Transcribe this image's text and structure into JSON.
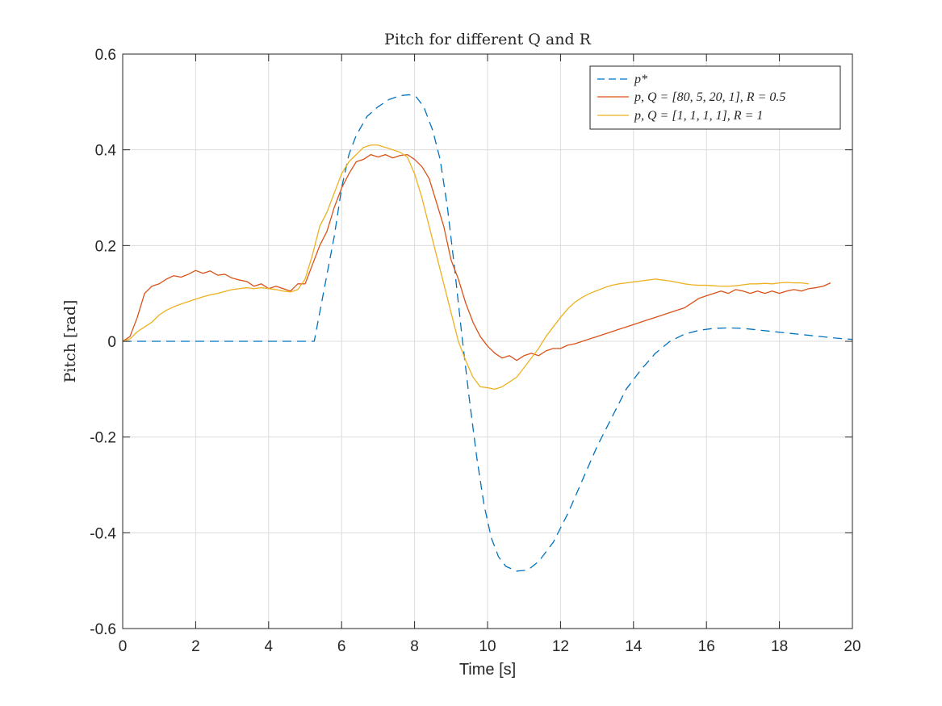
{
  "chart_data": {
    "type": "line",
    "title": "Pitch for different Q and R",
    "xlabel": "Time [s]",
    "ylabel": "Pitch [rad]",
    "xlim": [
      0,
      20
    ],
    "ylim": [
      -0.6,
      0.6
    ],
    "xticks": [
      0,
      2,
      4,
      6,
      8,
      10,
      12,
      14,
      16,
      18,
      20
    ],
    "yticks": [
      -0.6,
      -0.4,
      -0.2,
      0,
      0.2,
      0.4,
      0.6
    ],
    "xtick_labels": [
      "0",
      "2",
      "4",
      "6",
      "8",
      "10",
      "12",
      "14",
      "16",
      "18",
      "20"
    ],
    "ytick_labels": [
      "-0.6",
      "-0.4",
      "-0.2",
      "0",
      "0.2",
      "0.4",
      "0.6"
    ],
    "grid": true,
    "legend_position": "top-right",
    "series": [
      {
        "name": "p*",
        "color": "#0072BD",
        "style": "dashed",
        "points": [
          [
            0,
            0
          ],
          [
            5.25,
            0
          ],
          [
            5.5,
            0.1
          ],
          [
            5.8,
            0.22
          ],
          [
            6.0,
            0.32
          ],
          [
            6.2,
            0.39
          ],
          [
            6.4,
            0.43
          ],
          [
            6.7,
            0.47
          ],
          [
            7.0,
            0.49
          ],
          [
            7.3,
            0.505
          ],
          [
            7.6,
            0.513
          ],
          [
            7.85,
            0.515
          ],
          [
            8.05,
            0.51
          ],
          [
            8.25,
            0.49
          ],
          [
            8.5,
            0.44
          ],
          [
            8.7,
            0.38
          ],
          [
            8.9,
            0.28
          ],
          [
            9.1,
            0.15
          ],
          [
            9.3,
            0.01
          ],
          [
            9.5,
            -0.12
          ],
          [
            9.7,
            -0.24
          ],
          [
            9.9,
            -0.34
          ],
          [
            10.1,
            -0.41
          ],
          [
            10.3,
            -0.45
          ],
          [
            10.5,
            -0.47
          ],
          [
            10.8,
            -0.48
          ],
          [
            11.1,
            -0.478
          ],
          [
            11.4,
            -0.46
          ],
          [
            11.8,
            -0.42
          ],
          [
            12.2,
            -0.36
          ],
          [
            12.6,
            -0.29
          ],
          [
            13.0,
            -0.22
          ],
          [
            13.4,
            -0.16
          ],
          [
            13.8,
            -0.1
          ],
          [
            14.2,
            -0.06
          ],
          [
            14.6,
            -0.025
          ],
          [
            15.0,
            0
          ],
          [
            15.4,
            0.015
          ],
          [
            15.8,
            0.023
          ],
          [
            16.2,
            0.027
          ],
          [
            16.6,
            0.028
          ],
          [
            17.0,
            0.027
          ],
          [
            17.5,
            0.023
          ],
          [
            18.0,
            0.019
          ],
          [
            18.5,
            0.015
          ],
          [
            19.0,
            0.011
          ],
          [
            19.5,
            0.007
          ],
          [
            20.0,
            0.004
          ]
        ]
      },
      {
        "name": "p, Q = [80, 5, 20, 1], R = 0.5",
        "color": "#D95319",
        "style": "solid",
        "points": [
          [
            0,
            0
          ],
          [
            0.2,
            0.01
          ],
          [
            0.4,
            0.05
          ],
          [
            0.6,
            0.1
          ],
          [
            0.8,
            0.115
          ],
          [
            1.0,
            0.12
          ],
          [
            1.2,
            0.13
          ],
          [
            1.4,
            0.137
          ],
          [
            1.6,
            0.134
          ],
          [
            1.8,
            0.14
          ],
          [
            2.0,
            0.148
          ],
          [
            2.2,
            0.142
          ],
          [
            2.4,
            0.147
          ],
          [
            2.6,
            0.138
          ],
          [
            2.8,
            0.14
          ],
          [
            3.0,
            0.132
          ],
          [
            3.2,
            0.128
          ],
          [
            3.4,
            0.125
          ],
          [
            3.6,
            0.115
          ],
          [
            3.8,
            0.12
          ],
          [
            4.0,
            0.11
          ],
          [
            4.2,
            0.115
          ],
          [
            4.4,
            0.11
          ],
          [
            4.6,
            0.105
          ],
          [
            4.8,
            0.12
          ],
          [
            5.0,
            0.12
          ],
          [
            5.2,
            0.16
          ],
          [
            5.4,
            0.2
          ],
          [
            5.6,
            0.23
          ],
          [
            5.8,
            0.28
          ],
          [
            6.0,
            0.32
          ],
          [
            6.2,
            0.35
          ],
          [
            6.4,
            0.375
          ],
          [
            6.6,
            0.38
          ],
          [
            6.8,
            0.39
          ],
          [
            7.0,
            0.385
          ],
          [
            7.2,
            0.39
          ],
          [
            7.4,
            0.383
          ],
          [
            7.6,
            0.388
          ],
          [
            7.8,
            0.39
          ],
          [
            8.0,
            0.38
          ],
          [
            8.2,
            0.365
          ],
          [
            8.4,
            0.34
          ],
          [
            8.6,
            0.29
          ],
          [
            8.8,
            0.24
          ],
          [
            9.0,
            0.17
          ],
          [
            9.2,
            0.13
          ],
          [
            9.4,
            0.08
          ],
          [
            9.6,
            0.04
          ],
          [
            9.8,
            0.01
          ],
          [
            10.0,
            -0.01
          ],
          [
            10.2,
            -0.025
          ],
          [
            10.4,
            -0.035
          ],
          [
            10.6,
            -0.03
          ],
          [
            10.8,
            -0.04
          ],
          [
            11.0,
            -0.03
          ],
          [
            11.2,
            -0.025
          ],
          [
            11.4,
            -0.03
          ],
          [
            11.6,
            -0.02
          ],
          [
            11.8,
            -0.015
          ],
          [
            12.0,
            -0.015
          ],
          [
            12.2,
            -0.008
          ],
          [
            12.4,
            -0.005
          ],
          [
            12.6,
            0.0
          ],
          [
            12.8,
            0.005
          ],
          [
            13.0,
            0.01
          ],
          [
            13.2,
            0.015
          ],
          [
            13.4,
            0.02
          ],
          [
            13.6,
            0.025
          ],
          [
            13.8,
            0.03
          ],
          [
            14.0,
            0.035
          ],
          [
            14.2,
            0.04
          ],
          [
            14.4,
            0.045
          ],
          [
            14.6,
            0.05
          ],
          [
            14.8,
            0.055
          ],
          [
            15.0,
            0.06
          ],
          [
            15.2,
            0.065
          ],
          [
            15.4,
            0.07
          ],
          [
            15.6,
            0.08
          ],
          [
            15.8,
            0.09
          ],
          [
            16.0,
            0.095
          ],
          [
            16.2,
            0.1
          ],
          [
            16.4,
            0.105
          ],
          [
            16.6,
            0.1
          ],
          [
            16.8,
            0.108
          ],
          [
            17.0,
            0.105
          ],
          [
            17.2,
            0.1
          ],
          [
            17.4,
            0.105
          ],
          [
            17.6,
            0.1
          ],
          [
            17.8,
            0.105
          ],
          [
            18.0,
            0.1
          ],
          [
            18.2,
            0.105
          ],
          [
            18.4,
            0.108
          ],
          [
            18.6,
            0.105
          ],
          [
            18.8,
            0.11
          ],
          [
            19.0,
            0.112
          ],
          [
            19.2,
            0.115
          ],
          [
            19.4,
            0.122
          ]
        ]
      },
      {
        "name": "p, Q = [1, 1, 1, 1], R = 1",
        "color": "#EDB120",
        "style": "solid",
        "points": [
          [
            0,
            0
          ],
          [
            0.2,
            0.005
          ],
          [
            0.4,
            0.02
          ],
          [
            0.6,
            0.03
          ],
          [
            0.8,
            0.04
          ],
          [
            1.0,
            0.055
          ],
          [
            1.2,
            0.065
          ],
          [
            1.4,
            0.072
          ],
          [
            1.6,
            0.078
          ],
          [
            1.8,
            0.083
          ],
          [
            2.0,
            0.088
          ],
          [
            2.2,
            0.093
          ],
          [
            2.4,
            0.097
          ],
          [
            2.6,
            0.1
          ],
          [
            2.8,
            0.104
          ],
          [
            3.0,
            0.108
          ],
          [
            3.2,
            0.11
          ],
          [
            3.4,
            0.112
          ],
          [
            3.6,
            0.11
          ],
          [
            3.8,
            0.112
          ],
          [
            4.0,
            0.11
          ],
          [
            4.2,
            0.108
          ],
          [
            4.4,
            0.105
          ],
          [
            4.6,
            0.103
          ],
          [
            4.8,
            0.108
          ],
          [
            5.0,
            0.13
          ],
          [
            5.2,
            0.18
          ],
          [
            5.4,
            0.24
          ],
          [
            5.6,
            0.27
          ],
          [
            5.8,
            0.31
          ],
          [
            6.0,
            0.35
          ],
          [
            6.2,
            0.375
          ],
          [
            6.4,
            0.39
          ],
          [
            6.6,
            0.405
          ],
          [
            6.8,
            0.41
          ],
          [
            7.0,
            0.41
          ],
          [
            7.2,
            0.405
          ],
          [
            7.4,
            0.4
          ],
          [
            7.6,
            0.395
          ],
          [
            7.8,
            0.385
          ],
          [
            8.0,
            0.35
          ],
          [
            8.2,
            0.3
          ],
          [
            8.4,
            0.24
          ],
          [
            8.6,
            0.18
          ],
          [
            8.8,
            0.12
          ],
          [
            9.0,
            0.06
          ],
          [
            9.2,
            0.0
          ],
          [
            9.4,
            -0.04
          ],
          [
            9.6,
            -0.075
          ],
          [
            9.8,
            -0.095
          ],
          [
            10.0,
            -0.097
          ],
          [
            10.2,
            -0.1
          ],
          [
            10.4,
            -0.095
          ],
          [
            10.6,
            -0.085
          ],
          [
            10.8,
            -0.075
          ],
          [
            11.0,
            -0.055
          ],
          [
            11.2,
            -0.035
          ],
          [
            11.4,
            -0.015
          ],
          [
            11.6,
            0.01
          ],
          [
            11.8,
            0.03
          ],
          [
            12.0,
            0.05
          ],
          [
            12.2,
            0.068
          ],
          [
            12.4,
            0.082
          ],
          [
            12.6,
            0.092
          ],
          [
            12.8,
            0.1
          ],
          [
            13.0,
            0.106
          ],
          [
            13.2,
            0.112
          ],
          [
            13.4,
            0.117
          ],
          [
            13.6,
            0.12
          ],
          [
            13.8,
            0.122
          ],
          [
            14.0,
            0.124
          ],
          [
            14.2,
            0.126
          ],
          [
            14.4,
            0.128
          ],
          [
            14.6,
            0.13
          ],
          [
            14.8,
            0.128
          ],
          [
            15.0,
            0.126
          ],
          [
            15.2,
            0.123
          ],
          [
            15.4,
            0.12
          ],
          [
            15.6,
            0.118
          ],
          [
            15.8,
            0.117
          ],
          [
            16.0,
            0.117
          ],
          [
            16.2,
            0.116
          ],
          [
            16.4,
            0.115
          ],
          [
            16.6,
            0.115
          ],
          [
            16.8,
            0.116
          ],
          [
            17.0,
            0.118
          ],
          [
            17.2,
            0.12
          ],
          [
            17.4,
            0.12
          ],
          [
            17.6,
            0.121
          ],
          [
            17.8,
            0.12
          ],
          [
            18.0,
            0.122
          ],
          [
            18.2,
            0.123
          ],
          [
            18.4,
            0.122
          ],
          [
            18.6,
            0.122
          ],
          [
            18.8,
            0.12
          ]
        ]
      }
    ]
  }
}
